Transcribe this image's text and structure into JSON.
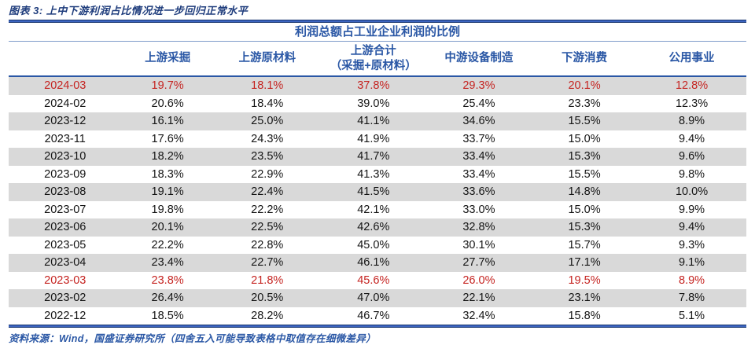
{
  "figure": {
    "caption": "图表 3: 上中下游利润占比情况进一步回归正常水平",
    "source_note": "资料来源：Wind，国盛证券研究所（四舍五入可能导致表格中取值存在细微差异）"
  },
  "table": {
    "title": "利润总额占工业企业利润的比例",
    "header_cells": [
      [
        ""
      ],
      [
        "上游采掘"
      ],
      [
        "上游原材料"
      ],
      [
        "上游合计",
        "（采掘+原材料）"
      ],
      [
        "中游设备制造"
      ],
      [
        "下游消费"
      ],
      [
        "公用事业"
      ]
    ]
  },
  "chart_data": {
    "type": "table",
    "title": "利润总额占工业企业利润的比例",
    "columns": [
      "上游采掘",
      "上游原材料",
      "上游合计（采掘+原材料）",
      "中游设备制造",
      "下游消费",
      "公用事业"
    ],
    "unit": "%",
    "highlight_color": "#c52320",
    "shaded_row_color": "#d9d9d9",
    "rows": [
      {
        "period": "2024-03",
        "values": [
          "19.7%",
          "18.1%",
          "37.8%",
          "29.3%",
          "20.1%",
          "12.8%"
        ],
        "red": true,
        "shaded": true
      },
      {
        "period": "2024-02",
        "values": [
          "20.6%",
          "18.4%",
          "39.0%",
          "25.4%",
          "23.3%",
          "12.3%"
        ],
        "red": false,
        "shaded": false
      },
      {
        "period": "2023-12",
        "values": [
          "16.1%",
          "25.0%",
          "41.1%",
          "34.6%",
          "15.5%",
          "8.9%"
        ],
        "red": false,
        "shaded": true
      },
      {
        "period": "2023-11",
        "values": [
          "17.6%",
          "24.3%",
          "41.9%",
          "33.7%",
          "15.0%",
          "9.4%"
        ],
        "red": false,
        "shaded": false
      },
      {
        "period": "2023-10",
        "values": [
          "18.2%",
          "23.5%",
          "41.7%",
          "33.4%",
          "15.3%",
          "9.6%"
        ],
        "red": false,
        "shaded": true
      },
      {
        "period": "2023-09",
        "values": [
          "18.3%",
          "22.9%",
          "41.3%",
          "33.4%",
          "15.5%",
          "9.8%"
        ],
        "red": false,
        "shaded": false
      },
      {
        "period": "2023-08",
        "values": [
          "19.1%",
          "22.4%",
          "41.5%",
          "33.6%",
          "14.8%",
          "10.0%"
        ],
        "red": false,
        "shaded": true
      },
      {
        "period": "2023-07",
        "values": [
          "19.8%",
          "22.2%",
          "42.1%",
          "33.0%",
          "15.0%",
          "9.9%"
        ],
        "red": false,
        "shaded": false
      },
      {
        "period": "2023-06",
        "values": [
          "20.1%",
          "22.5%",
          "42.6%",
          "32.8%",
          "15.3%",
          "9.4%"
        ],
        "red": false,
        "shaded": true
      },
      {
        "period": "2023-05",
        "values": [
          "22.2%",
          "22.8%",
          "45.0%",
          "30.1%",
          "15.7%",
          "9.3%"
        ],
        "red": false,
        "shaded": false
      },
      {
        "period": "2023-04",
        "values": [
          "23.4%",
          "22.7%",
          "46.1%",
          "27.7%",
          "17.1%",
          "9.1%"
        ],
        "red": false,
        "shaded": true
      },
      {
        "period": "2023-03",
        "values": [
          "23.8%",
          "21.8%",
          "45.6%",
          "26.0%",
          "19.5%",
          "8.9%"
        ],
        "red": true,
        "shaded": false
      },
      {
        "period": "2023-02",
        "values": [
          "26.4%",
          "20.5%",
          "47.0%",
          "22.1%",
          "23.1%",
          "7.8%"
        ],
        "red": false,
        "shaded": true
      },
      {
        "period": "2022-12",
        "values": [
          "18.5%",
          "28.2%",
          "46.7%",
          "32.4%",
          "15.8%",
          "5.1%"
        ],
        "red": false,
        "shaded": false
      }
    ]
  }
}
